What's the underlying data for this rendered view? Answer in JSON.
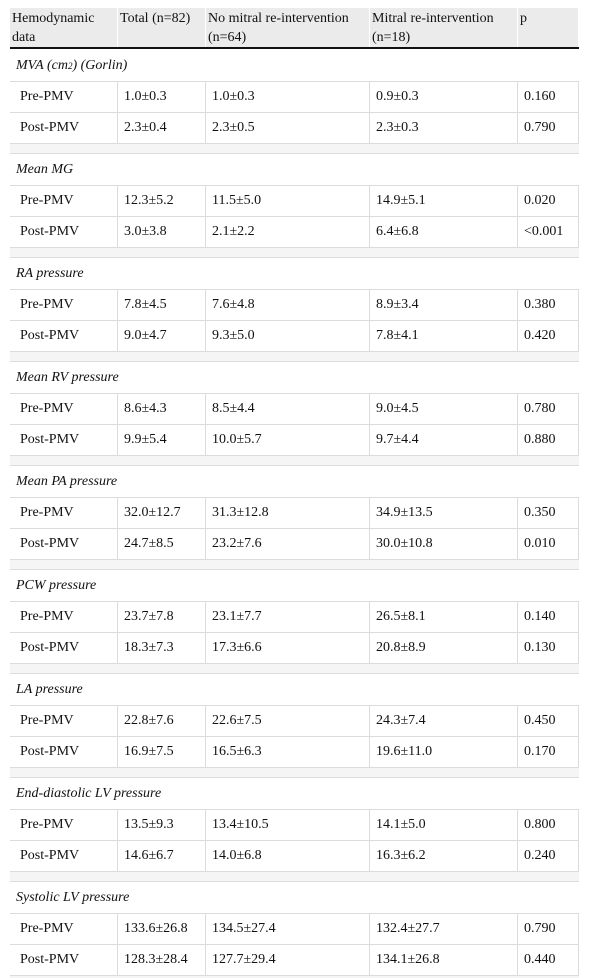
{
  "table": {
    "header": [
      "Hemodynamic data",
      "Total (n=82)",
      "No mitral re-intervention (n=64)",
      "Mitral re-intervention (n=18)",
      "p"
    ],
    "sections": [
      {
        "title": [
          "MVA (cm",
          "2",
          ") (Gorlin)"
        ],
        "rows": [
          [
            "Pre-PMV",
            "1.0±0.3",
            "1.0±0.3",
            "0.9±0.3",
            "0.160"
          ],
          [
            "Post-PMV",
            "2.3±0.4",
            "2.3±0.5",
            "2.3±0.3",
            "0.790"
          ]
        ]
      },
      {
        "title": "Mean MG",
        "rows": [
          [
            "Pre-PMV",
            "12.3±5.2",
            "11.5±5.0",
            "14.9±5.1",
            "0.020"
          ],
          [
            "Post-PMV",
            "3.0±3.8",
            "2.1±2.2",
            "6.4±6.8",
            "<0.001"
          ]
        ]
      },
      {
        "title": "RA pressure",
        "rows": [
          [
            "Pre-PMV",
            "7.8±4.5",
            "7.6±4.8",
            "8.9±3.4",
            "0.380"
          ],
          [
            "Post-PMV",
            "9.0±4.7",
            "9.3±5.0",
            "7.8±4.1",
            "0.420"
          ]
        ]
      },
      {
        "title": "Mean RV pressure",
        "rows": [
          [
            "Pre-PMV",
            "8.6±4.3",
            "8.5±4.4",
            "9.0±4.5",
            "0.780"
          ],
          [
            "Post-PMV",
            "9.9±5.4",
            "10.0±5.7",
            "9.7±4.4",
            "0.880"
          ]
        ]
      },
      {
        "title": "Mean PA pressure",
        "rows": [
          [
            "Pre-PMV",
            "32.0±12.7",
            "31.3±12.8",
            "34.9±13.5",
            "0.350"
          ],
          [
            "Post-PMV",
            "24.7±8.5",
            "23.2±7.6",
            "30.0±10.8",
            "0.010"
          ]
        ]
      },
      {
        "title": "PCW pressure",
        "rows": [
          [
            "Pre-PMV",
            "23.7±7.8",
            "23.1±7.7",
            "26.5±8.1",
            "0.140"
          ],
          [
            "Post-PMV",
            "18.3±7.3",
            "17.3±6.6",
            "20.8±8.9",
            "0.130"
          ]
        ]
      },
      {
        "title": "LA pressure",
        "rows": [
          [
            "Pre-PMV",
            "22.8±7.6",
            "22.6±7.5",
            "24.3±7.4",
            "0.450"
          ],
          [
            "Post-PMV",
            "16.9±7.5",
            "16.5±6.3",
            "19.6±11.0",
            "0.170"
          ]
        ]
      },
      {
        "title": "End-diastolic LV pressure",
        "rows": [
          [
            "Pre-PMV",
            "13.5±9.3",
            "13.4±10.5",
            "14.1±5.0",
            "0.800"
          ],
          [
            "Post-PMV",
            "14.6±6.7",
            "14.0±6.8",
            "16.3±6.2",
            "0.240"
          ]
        ]
      },
      {
        "title": "Systolic LV pressure",
        "rows": [
          [
            "Pre-PMV",
            "133.6±26.8",
            "134.5±27.4",
            "132.4±27.7",
            "0.790"
          ],
          [
            "Post-PMV",
            "128.3±28.4",
            "127.7±29.4",
            "134.1±26.8",
            "0.440"
          ]
        ]
      }
    ]
  }
}
